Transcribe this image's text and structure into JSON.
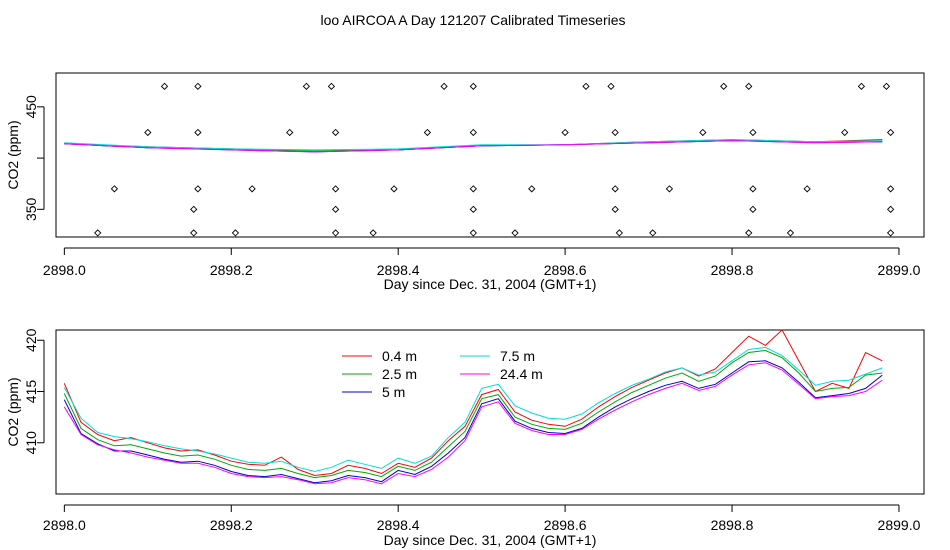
{
  "figure_title": "loo AIRCOA A  Day 121207  Calibrated Timeseries",
  "chart_data": [
    {
      "type": "line",
      "title": "",
      "xlabel": "Day since Dec. 31, 2004 (GMT+1)",
      "ylabel": "CO2 (ppm)",
      "xlim": [
        2897.99,
        2899.03
      ],
      "ylim": [
        323,
        483
      ],
      "x_ticks": [
        2898.0,
        2898.2,
        2898.4,
        2898.6,
        2898.8,
        2899.0
      ],
      "x_tick_labels": [
        "2898.0",
        "2898.2",
        "2898.4",
        "2898.6",
        "2898.8",
        "2899.0"
      ],
      "y_ticks": [
        350,
        400,
        450
      ],
      "y_tick_labels": [
        "350",
        "",
        "450"
      ],
      "grid": false,
      "legend": "none",
      "series": [
        {
          "color": "#ff0000",
          "x": [
            2898.0,
            2898.1,
            2898.2,
            2898.3,
            2898.4,
            2898.5,
            2898.6,
            2898.7,
            2898.8,
            2898.9,
            2898.98
          ],
          "values": [
            414,
            411,
            409,
            407,
            408,
            412,
            413,
            416,
            418,
            416,
            418
          ]
        },
        {
          "color": "#00cc00",
          "x": [
            2898.0,
            2898.1,
            2898.2,
            2898.3,
            2898.4,
            2898.5,
            2898.6,
            2898.7,
            2898.8,
            2898.9,
            2898.98
          ],
          "values": [
            414,
            410,
            409,
            407,
            408,
            412,
            413,
            415,
            417,
            416,
            416
          ]
        },
        {
          "color": "#0000cc",
          "x": [
            2898.0,
            2898.1,
            2898.2,
            2898.3,
            2898.4,
            2898.5,
            2898.6,
            2898.7,
            2898.8,
            2898.9,
            2898.98
          ],
          "values": [
            414,
            410,
            408,
            406,
            408,
            412,
            413,
            415,
            417,
            415,
            416
          ]
        },
        {
          "color": "#00dddd",
          "x": [
            2898.0,
            2898.1,
            2898.2,
            2898.3,
            2898.4,
            2898.5,
            2898.6,
            2898.7,
            2898.8,
            2898.9,
            2898.98
          ],
          "values": [
            415,
            411,
            409,
            408,
            409,
            413,
            413,
            416,
            418,
            416,
            417
          ]
        },
        {
          "color": "#ff00ff",
          "x": [
            2898.0,
            2898.1,
            2898.2,
            2898.3,
            2898.4,
            2898.5,
            2898.6,
            2898.7,
            2898.8,
            2898.9,
            2898.98
          ],
          "values": [
            414,
            410,
            408,
            406,
            408,
            412,
            413,
            415,
            417,
            415,
            416
          ]
        }
      ],
      "markers": {
        "symbol": "open-diamond",
        "points": [
          [
            2898.04,
            327
          ],
          [
            2898.06,
            370
          ],
          [
            2898.12,
            470
          ],
          [
            2898.1,
            425
          ],
          [
            2898.155,
            327
          ],
          [
            2898.16,
            470
          ],
          [
            2898.16,
            425
          ],
          [
            2898.16,
            370
          ],
          [
            2898.155,
            350
          ],
          [
            2898.205,
            327
          ],
          [
            2898.225,
            370
          ],
          [
            2898.27,
            425
          ],
          [
            2898.29,
            470
          ],
          [
            2898.32,
            470
          ],
          [
            2898.325,
            425
          ],
          [
            2898.325,
            370
          ],
          [
            2898.325,
            350
          ],
          [
            2898.325,
            327
          ],
          [
            2898.37,
            327
          ],
          [
            2898.395,
            370
          ],
          [
            2898.435,
            425
          ],
          [
            2898.455,
            470
          ],
          [
            2898.49,
            470
          ],
          [
            2898.49,
            425
          ],
          [
            2898.49,
            370
          ],
          [
            2898.49,
            350
          ],
          [
            2898.49,
            327
          ],
          [
            2898.54,
            327
          ],
          [
            2898.56,
            370
          ],
          [
            2898.6,
            425
          ],
          [
            2898.625,
            470
          ],
          [
            2898.655,
            470
          ],
          [
            2898.66,
            425
          ],
          [
            2898.66,
            370
          ],
          [
            2898.66,
            350
          ],
          [
            2898.665,
            327
          ],
          [
            2898.705,
            327
          ],
          [
            2898.725,
            370
          ],
          [
            2898.765,
            425
          ],
          [
            2898.79,
            470
          ],
          [
            2898.82,
            470
          ],
          [
            2898.825,
            425
          ],
          [
            2898.825,
            370
          ],
          [
            2898.825,
            350
          ],
          [
            2898.82,
            327
          ],
          [
            2898.87,
            327
          ],
          [
            2898.89,
            370
          ],
          [
            2898.935,
            425
          ],
          [
            2898.955,
            470
          ],
          [
            2898.985,
            470
          ],
          [
            2898.99,
            425
          ],
          [
            2898.99,
            370
          ],
          [
            2898.99,
            350
          ],
          [
            2898.99,
            327
          ]
        ]
      }
    },
    {
      "type": "line",
      "title": "",
      "xlabel": "Day since Dec. 31, 2004 (GMT+1)",
      "ylabel": "CO2 (ppm)",
      "xlim": [
        2897.99,
        2899.03
      ],
      "ylim": [
        405,
        421
      ],
      "x_ticks": [
        2898.0,
        2898.2,
        2898.4,
        2898.6,
        2898.8,
        2899.0
      ],
      "x_tick_labels": [
        "2898.0",
        "2898.2",
        "2898.4",
        "2898.6",
        "2898.8",
        "2899.0"
      ],
      "y_ticks": [
        410,
        415,
        420
      ],
      "y_tick_labels": [
        "410",
        "415",
        "420"
      ],
      "grid": false,
      "legend": "top-center",
      "x": [
        2898.0,
        2898.02,
        2898.04,
        2898.06,
        2898.08,
        2898.1,
        2898.12,
        2898.14,
        2898.16,
        2898.18,
        2898.2,
        2898.22,
        2898.24,
        2898.26,
        2898.28,
        2898.3,
        2898.32,
        2898.34,
        2898.36,
        2898.38,
        2898.4,
        2898.42,
        2898.44,
        2898.46,
        2898.48,
        2898.5,
        2898.52,
        2898.54,
        2898.56,
        2898.58,
        2898.6,
        2898.62,
        2898.64,
        2898.66,
        2898.68,
        2898.7,
        2898.72,
        2898.74,
        2898.76,
        2898.78,
        2898.8,
        2898.82,
        2898.84,
        2898.86,
        2898.88,
        2898.9,
        2898.92,
        2898.94,
        2898.96,
        2898.98
      ],
      "series": [
        {
          "name": "0.4 m",
          "color": "#ff0000",
          "values": [
            415.8,
            412.0,
            410.8,
            410.2,
            410.5,
            410.0,
            409.5,
            409.2,
            409.3,
            408.8,
            408.2,
            407.9,
            407.8,
            408.6,
            407.4,
            406.8,
            407.0,
            407.8,
            407.5,
            407.0,
            408.0,
            407.6,
            408.5,
            410.2,
            411.6,
            414.7,
            415.2,
            413.0,
            412.2,
            411.8,
            411.6,
            412.3,
            413.5,
            414.5,
            415.4,
            416.1,
            416.8,
            417.3,
            416.5,
            417.2,
            418.8,
            420.4,
            419.5,
            421.0,
            418.0,
            415.0,
            415.8,
            415.3,
            418.8,
            418.0
          ]
        },
        {
          "name": "2.5 m",
          "color": "#00aa00",
          "values": [
            414.8,
            411.4,
            410.3,
            409.7,
            409.8,
            409.4,
            409.0,
            408.7,
            408.8,
            408.4,
            407.8,
            407.4,
            407.3,
            407.5,
            407.0,
            406.6,
            406.8,
            407.3,
            407.1,
            406.7,
            407.7,
            407.3,
            408.1,
            409.6,
            411.1,
            414.3,
            414.7,
            412.5,
            411.8,
            411.4,
            411.3,
            411.9,
            413.0,
            414.0,
            414.9,
            415.6,
            416.3,
            416.8,
            416.0,
            416.5,
            417.8,
            418.8,
            419.0,
            418.3,
            416.8,
            415.0,
            415.3,
            415.4,
            416.6,
            416.8
          ]
        },
        {
          "name": "5 m",
          "color": "#0000cc",
          "values": [
            414.2,
            410.9,
            409.9,
            409.2,
            409.2,
            408.8,
            408.4,
            408.1,
            408.2,
            407.8,
            407.2,
            406.8,
            406.7,
            406.9,
            406.5,
            406.1,
            406.3,
            406.8,
            406.6,
            406.2,
            407.3,
            406.9,
            407.7,
            409.0,
            410.5,
            413.8,
            414.3,
            412.1,
            411.4,
            411.0,
            410.9,
            411.4,
            412.5,
            413.5,
            414.3,
            415.0,
            415.6,
            416.0,
            415.3,
            415.7,
            416.8,
            417.9,
            418.0,
            417.3,
            415.9,
            414.4,
            414.6,
            414.8,
            415.3,
            416.6
          ]
        },
        {
          "name": "7.5 m",
          "color": "#00dddd",
          "values": [
            415.4,
            412.4,
            411.0,
            410.6,
            410.4,
            410.1,
            409.7,
            409.4,
            409.2,
            408.9,
            408.5,
            408.1,
            408.0,
            408.2,
            407.6,
            407.2,
            407.6,
            408.3,
            407.9,
            407.5,
            408.5,
            408.0,
            408.7,
            410.5,
            412.0,
            415.3,
            415.7,
            413.6,
            412.9,
            412.4,
            412.3,
            412.8,
            413.9,
            414.8,
            415.6,
            416.2,
            416.9,
            417.3,
            416.6,
            416.9,
            418.0,
            419.1,
            419.3,
            418.5,
            417.1,
            415.6,
            416.0,
            416.1,
            416.7,
            417.3
          ]
        },
        {
          "name": "24.4 m",
          "color": "#ff00ff",
          "values": [
            413.5,
            410.8,
            409.8,
            409.3,
            409.0,
            408.6,
            408.3,
            408.0,
            408.0,
            407.6,
            407.0,
            406.7,
            406.6,
            406.7,
            406.4,
            406.0,
            406.1,
            406.6,
            406.4,
            406.0,
            407.0,
            406.7,
            407.4,
            408.6,
            410.2,
            413.5,
            414.0,
            411.9,
            411.2,
            410.8,
            410.8,
            411.3,
            412.3,
            413.2,
            414.0,
            414.7,
            415.3,
            415.8,
            415.1,
            415.5,
            416.6,
            417.6,
            417.8,
            417.1,
            415.7,
            414.3,
            414.5,
            414.6,
            415.0,
            416.1
          ]
        }
      ]
    }
  ]
}
